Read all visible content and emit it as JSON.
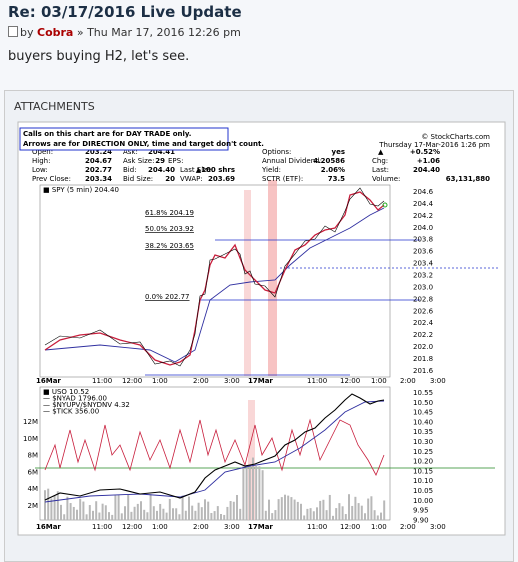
{
  "post": {
    "title": "Re: 03/17/2016 Live Update",
    "by": "by",
    "author": "Cobra",
    "date": "» Thu Mar 17, 2016 12:26 pm",
    "body": "buyers buying H2, let's see."
  },
  "attachments": {
    "heading": "ATTACHMENTS",
    "chart": {
      "notice": [
        "Calls on this chart are for DAY TRADE only.",
        "Arrows are for DIRECTION ONLY, time and target don't count."
      ],
      "source": "© StockCharts.com",
      "date": "Thursday 17-Mar-2016 1:26 pm",
      "quote": [
        [
          "Open:",
          "203.24",
          "Ask:",
          "204.41",
          "Options:",
          "yes",
          "▲",
          "+0.52%"
        ],
        [
          "High:",
          "204.67",
          "Ask Size:",
          "29",
          "EPS:",
          "Annual Dividend:",
          "4.20586",
          "Chg:",
          "+1.06"
        ],
        [
          "Low:",
          "202.77",
          "Bid:",
          "204.40",
          "Last Size:",
          "▲100 shrs",
          "Yield:",
          "2.06%",
          "Last:",
          "204.40"
        ],
        [
          "Prev Close:",
          "203.34",
          "Bid Size:",
          "20",
          "VWAP:",
          "203.69",
          "SCTR (ETF):",
          "73.5",
          "Volume:",
          "63,131,880"
        ]
      ],
      "price_legend": "■ SPY (5 min) 204.40",
      "fib_labels": [
        "61.8% 204.19",
        "50.0% 203.92",
        "38.2% 203.65",
        "0.0% 202.77"
      ],
      "price_axis": [
        "204.6",
        "204.4",
        "204.2",
        "204.0",
        "203.8",
        "203.6",
        "203.4",
        "203.2",
        "203.0",
        "202.8",
        "202.6",
        "202.4",
        "202.2",
        "202.0",
        "201.8",
        "201.6"
      ],
      "lower_legend": [
        "■ USO 10.52",
        "— $NYAD 1796.00",
        "— $NYUPV/$NYDNV 4.32",
        "— $TICK 356.00"
      ],
      "lower_axis": [
        "10.55",
        "10.50",
        "10.45",
        "10.40",
        "10.35",
        "10.30",
        "10.25",
        "10.20",
        "10.15",
        "10.10",
        "10.05",
        "10.00",
        "9.95",
        "9.90"
      ],
      "volume_axis": [
        "12M",
        "10M",
        "8M",
        "6M",
        "4M",
        "2M"
      ],
      "time_axis": [
        "16Mar",
        "11:00",
        "12:00",
        "1:00",
        "2:00",
        "3:00",
        "17Mar",
        "11:00",
        "12:00",
        "1:00",
        "2:00",
        "3:00"
      ]
    }
  }
}
